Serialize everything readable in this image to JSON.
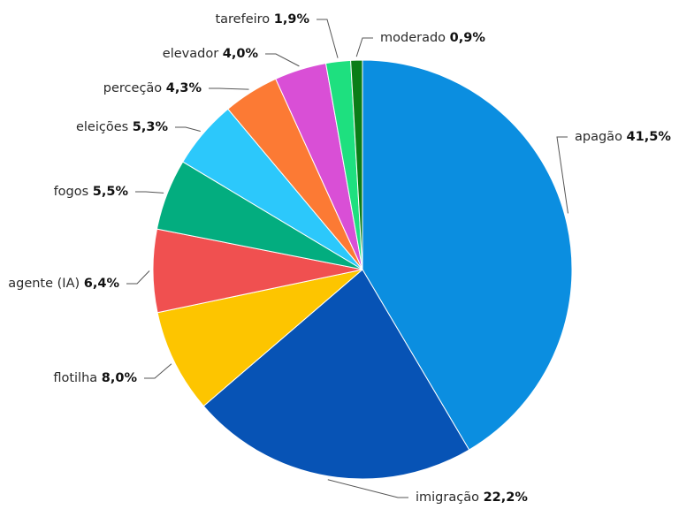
{
  "chart_data": {
    "type": "pie",
    "categories": [
      "apagão",
      "imigração",
      "flotilha",
      "agente (IA)",
      "fogos",
      "eleições",
      "perceção",
      "elevador",
      "tarefeiro",
      "moderado"
    ],
    "values": [
      41.5,
      22.2,
      8.0,
      6.4,
      5.5,
      5.3,
      4.3,
      4.0,
      1.9,
      0.9
    ],
    "value_labels": [
      "41,5%",
      "22,2%",
      "8,0%",
      "6,4%",
      "5,5%",
      "5,3%",
      "4,3%",
      "4,0%",
      "1,9%",
      "0,9%"
    ],
    "colors": [
      "#0b8ee0",
      "#0753b5",
      "#fdc500",
      "#f05050",
      "#03ad7f",
      "#2cc8fb",
      "#fc7a34",
      "#d94fd6",
      "#1ee07f",
      "#0a7d17"
    ]
  }
}
